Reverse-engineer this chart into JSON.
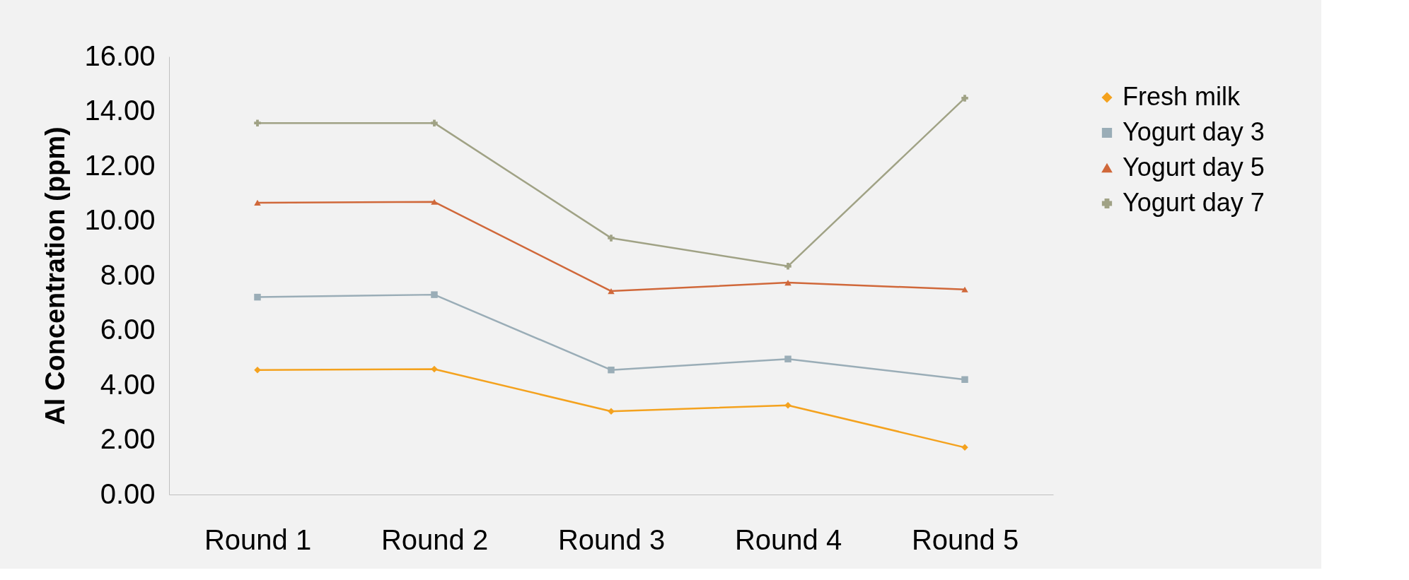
{
  "chart_data": {
    "type": "line",
    "ylabel": "Al   Concentration (ppm)",
    "categories": [
      "Round 1",
      "Round 2",
      "Round 3",
      "Round 4",
      "Round 5"
    ],
    "series": [
      {
        "name": "Fresh milk",
        "color": "#f4a21e",
        "marker": "diamond",
        "values": [
          4.55,
          4.58,
          3.04,
          3.26,
          1.72
        ]
      },
      {
        "name": "Yogurt day 3",
        "color": "#9aadb7",
        "marker": "square",
        "values": [
          7.21,
          7.3,
          4.55,
          4.95,
          4.2
        ]
      },
      {
        "name": "Yogurt day 5",
        "color": "#d0683a",
        "marker": "triangle",
        "values": [
          10.66,
          10.69,
          7.43,
          7.74,
          7.49
        ]
      },
      {
        "name": "Yogurt day 7",
        "color": "#a0a285",
        "marker": "cross",
        "values": [
          13.57,
          13.57,
          9.37,
          8.34,
          14.48
        ]
      }
    ],
    "ylim": [
      0,
      16
    ],
    "yticks": [
      {
        "value": 0,
        "label": "0.00"
      },
      {
        "value": 2,
        "label": "2.00"
      },
      {
        "value": 4,
        "label": "4.00"
      },
      {
        "value": 6,
        "label": "6.00"
      },
      {
        "value": 8,
        "label": "8.00"
      },
      {
        "value": 10,
        "label": "10.00"
      },
      {
        "value": 12,
        "label": "12.00"
      },
      {
        "value": 14,
        "label": "14.00"
      },
      {
        "value": 16,
        "label": "16.00"
      }
    ],
    "grid": false,
    "legend": "right",
    "line_style": "solid"
  }
}
